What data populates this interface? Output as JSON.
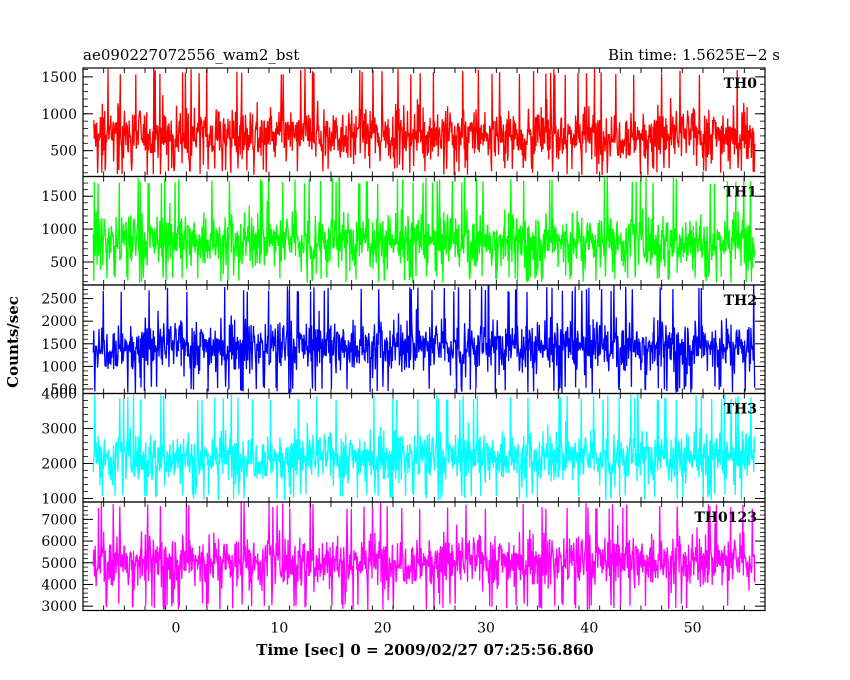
{
  "chart_data": {
    "type": "line",
    "title_left": "ae090227072556_wam2_bst",
    "title_right": "Bin time: 1.5625E−2 s",
    "xlabel": "Time [sec] 0 = 2009/02/27 07:25:56.860",
    "ylabel": "Counts/sec",
    "xlim": [
      -9,
      57
    ],
    "data_x_range": [
      -8,
      56
    ],
    "x_ticks": [
      0,
      10,
      20,
      30,
      40,
      50
    ],
    "panels": [
      {
        "name": "TH0",
        "color": "#ff0000",
        "ylim": [
          150,
          1620
        ],
        "y_ticks": [
          500,
          1000,
          1500
        ],
        "mean": 720,
        "spread": 330,
        "min": 170,
        "max": 1620
      },
      {
        "name": "TH1",
        "color": "#00ff00",
        "ylim": [
          150,
          1800
        ],
        "y_ticks": [
          500,
          1000,
          1500
        ],
        "mean": 830,
        "spread": 380,
        "min": 180,
        "max": 1800
      },
      {
        "name": "TH2",
        "color": "#0000ff",
        "ylim": [
          400,
          2800
        ],
        "y_ticks": [
          500,
          1000,
          1500,
          2000,
          2500
        ],
        "mean": 1450,
        "spread": 520,
        "min": 400,
        "max": 2800
      },
      {
        "name": "TH3",
        "color": "#00ffff",
        "ylim": [
          900,
          4000
        ],
        "y_ticks": [
          1000,
          2000,
          3000,
          4000
        ],
        "mean": 2200,
        "spread": 650,
        "min": 950,
        "max": 4000
      },
      {
        "name": "TH0123",
        "color": "#ff00ff",
        "ylim": [
          2800,
          7800
        ],
        "y_ticks": [
          3000,
          4000,
          5000,
          6000,
          7000
        ],
        "mean": 5100,
        "spread": 1100,
        "min": 2800,
        "max": 7800
      }
    ]
  }
}
